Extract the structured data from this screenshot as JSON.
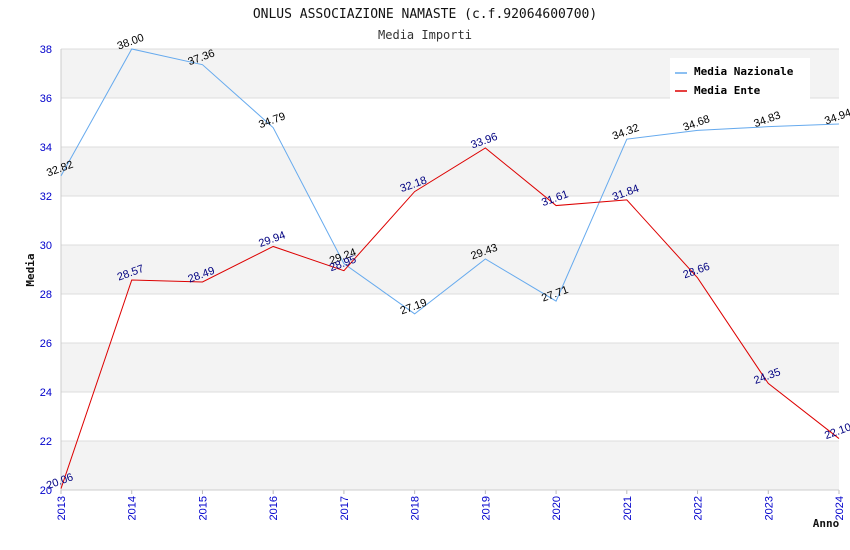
{
  "chart_data": {
    "type": "line",
    "title": "ONLUS ASSOCIAZIONE NAMASTE   (c.f.92064600700)",
    "subtitle": "Media Importi",
    "xlabel": "Anno",
    "ylabel": "Media",
    "categories": [
      "2013",
      "2014",
      "2015",
      "2016",
      "2017",
      "2018",
      "2019",
      "2020",
      "2021",
      "2022",
      "2023",
      "2024"
    ],
    "ylim": [
      20,
      38
    ],
    "yticks": [
      20,
      22,
      24,
      26,
      28,
      30,
      32,
      34,
      36,
      38
    ],
    "grid": true,
    "legend_position": "top-right",
    "series": [
      {
        "name": "Media Nazionale",
        "color": "#66aaee",
        "label_color": "#000000",
        "values": [
          32.82,
          38.0,
          37.36,
          34.79,
          29.24,
          27.19,
          29.43,
          27.71,
          34.32,
          34.68,
          34.83,
          34.94
        ],
        "labels": [
          "32.82",
          "38.00",
          "37.36",
          "34.79",
          "29.24",
          "27.19",
          "29.43",
          "27.71",
          "34.32",
          "34.68",
          "34.83",
          "34.94"
        ]
      },
      {
        "name": "Media Ente",
        "color": "#dd0000",
        "label_color": "#000080",
        "values": [
          20.06,
          28.57,
          28.49,
          29.94,
          28.95,
          32.18,
          33.96,
          31.61,
          31.84,
          28.66,
          24.35,
          22.1
        ],
        "labels": [
          "20.06",
          "28.57",
          "28.49",
          "29.94",
          "28.95",
          "32.18",
          "33.96",
          "31.61",
          "31.84",
          "28.66",
          "24.35",
          "22.10"
        ]
      }
    ]
  }
}
